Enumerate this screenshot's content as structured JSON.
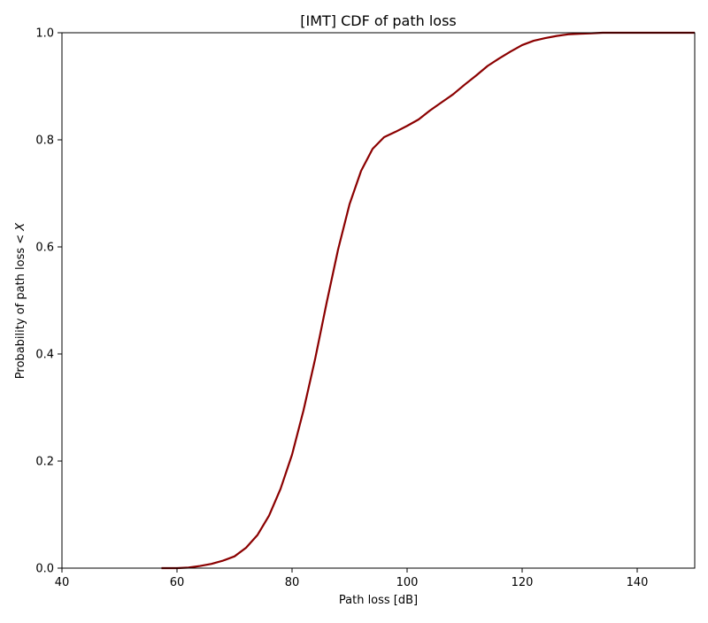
{
  "chart_data": {
    "type": "line",
    "title": "[IMT] CDF of path loss",
    "xlabel": "Path loss [dB]",
    "ylabel_prefix": "Probability of path loss < ",
    "ylabel_var": "X",
    "xlim": [
      40,
      150
    ],
    "ylim": [
      0.0,
      1.0
    ],
    "xticks": [
      40,
      60,
      80,
      100,
      120,
      140
    ],
    "xtick_labels": [
      "40",
      "60",
      "80",
      "100",
      "120",
      "140"
    ],
    "yticks": [
      0.0,
      0.2,
      0.4,
      0.6,
      0.8,
      1.0
    ],
    "ytick_labels": [
      "0.0",
      "0.2",
      "0.4",
      "0.6",
      "0.8",
      "1.0"
    ],
    "grid": false,
    "line_color": "#8b0000",
    "series": [
      {
        "x": [
          57.3,
          60,
          62,
          64,
          66,
          68,
          70,
          72,
          74,
          76,
          78,
          80,
          82,
          84,
          86,
          88,
          90,
          92,
          94,
          96,
          98,
          100,
          102,
          104,
          106,
          108,
          110,
          112,
          114,
          116,
          118,
          120,
          122,
          124,
          126,
          128,
          130,
          132,
          134,
          136,
          140,
          150
        ],
        "y": [
          0.0,
          0.0,
          0.001,
          0.004,
          0.008,
          0.014,
          0.022,
          0.038,
          0.062,
          0.098,
          0.148,
          0.212,
          0.295,
          0.39,
          0.495,
          0.595,
          0.68,
          0.742,
          0.783,
          0.805,
          0.815,
          0.826,
          0.838,
          0.855,
          0.87,
          0.885,
          0.903,
          0.92,
          0.938,
          0.952,
          0.965,
          0.977,
          0.985,
          0.99,
          0.994,
          0.997,
          0.998,
          0.999,
          1.0,
          1.0,
          1.0,
          1.0
        ]
      }
    ]
  }
}
